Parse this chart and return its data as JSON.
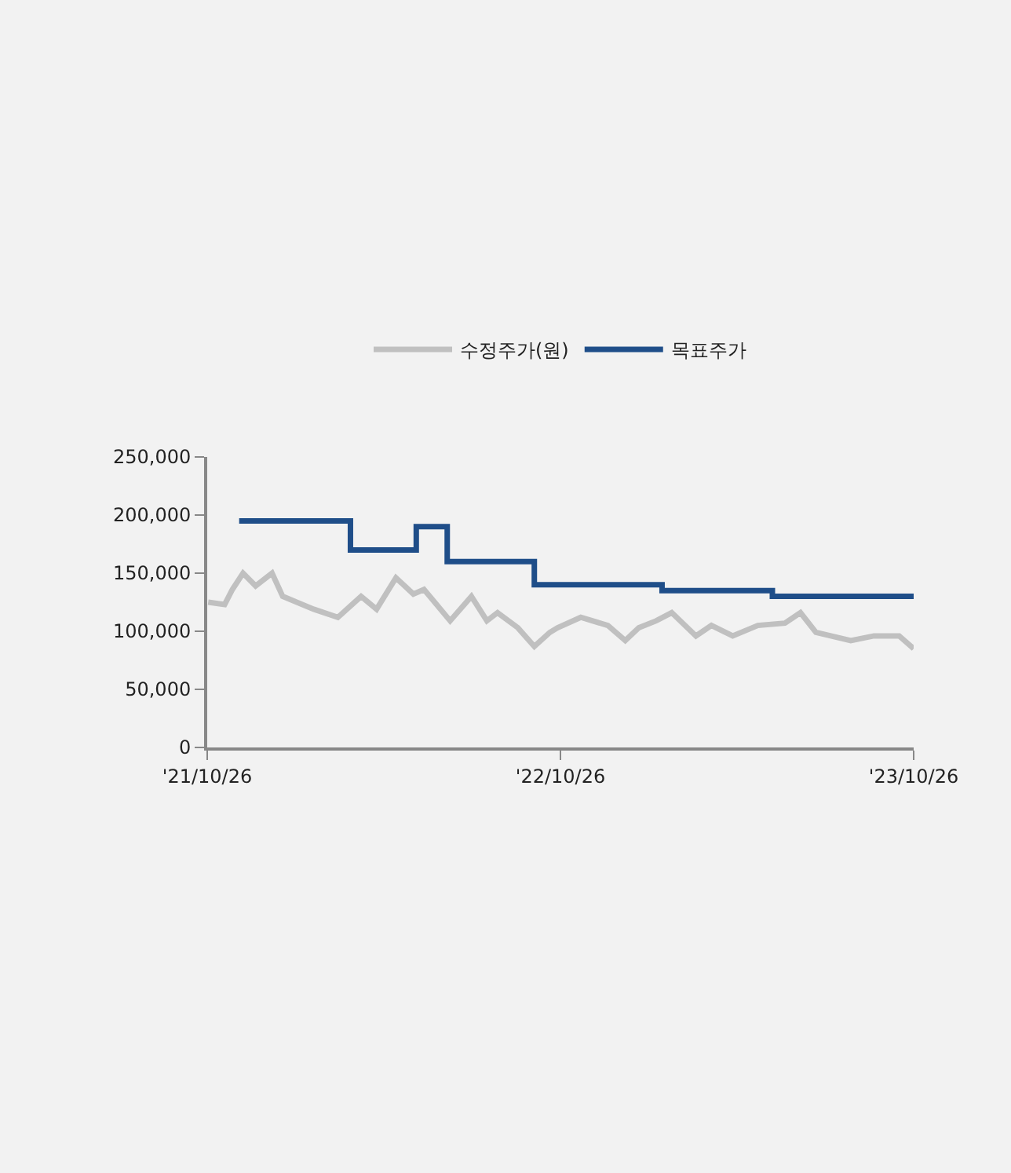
{
  "chart_data": {
    "type": "line",
    "series": [
      {
        "name": "수정주가(원)",
        "color": "#c0c0c0",
        "x": [
          "2021-10-27",
          "2021-11-13",
          "2021-11-21",
          "2021-12-02",
          "2021-12-15",
          "2022-01-01",
          "2022-01-12",
          "2022-02-13",
          "2022-03-10",
          "2022-04-03",
          "2022-04-19",
          "2022-05-09",
          "2022-05-27",
          "2022-06-07",
          "2022-07-04",
          "2022-07-26",
          "2022-08-11",
          "2022-08-22",
          "2022-09-12",
          "2022-09-29",
          "2022-10-15",
          "2022-10-23",
          "2022-11-16",
          "2022-12-14",
          "2023-01-01",
          "2023-01-15",
          "2023-02-02",
          "2023-02-18",
          "2023-03-15",
          "2023-03-31",
          "2023-04-22",
          "2023-05-18",
          "2023-06-15",
          "2023-07-01",
          "2023-07-17",
          "2023-08-22",
          "2023-09-15",
          "2023-10-11",
          "2023-10-26"
        ],
        "values": [
          125000,
          123000,
          136000,
          150000,
          139000,
          150000,
          130000,
          119000,
          112000,
          130000,
          119000,
          146000,
          132000,
          136000,
          109000,
          130000,
          109000,
          116000,
          103000,
          87000,
          99000,
          103000,
          112000,
          105000,
          92000,
          103000,
          109000,
          116000,
          96000,
          105000,
          96000,
          105000,
          107000,
          116000,
          99000,
          92000,
          96000,
          96000,
          85000
        ]
      },
      {
        "name": "목표주가",
        "color": "#1f4e89",
        "type": "step",
        "x": [
          "2021-11-28",
          "2022-03-23",
          "2022-05-30",
          "2022-07-01",
          "2022-09-29",
          "2023-02-08",
          "2023-06-02",
          "2023-10-26"
        ],
        "values": [
          195000,
          170000,
          190000,
          160000,
          140000,
          135000,
          130000,
          130000
        ]
      }
    ],
    "xlim": [
      "2021-10-26",
      "2023-10-26"
    ],
    "xticks": [
      {
        "value": "2021-10-26",
        "label": "'21/10/26"
      },
      {
        "value": "2022-10-26",
        "label": "'22/10/26"
      },
      {
        "value": "2023-10-26",
        "label": "'23/10/26"
      }
    ],
    "ylim": [
      0,
      250000
    ],
    "yticks": [
      {
        "value": 0,
        "label": "0"
      },
      {
        "value": 50000,
        "label": "50,000"
      },
      {
        "value": 100000,
        "label": "100,000"
      },
      {
        "value": 150000,
        "label": "150,000"
      },
      {
        "value": 200000,
        "label": "200,000"
      },
      {
        "value": 250000,
        "label": "250,000"
      }
    ],
    "grid": false,
    "legend": "top",
    "marker": "none",
    "line_style": "solid"
  }
}
